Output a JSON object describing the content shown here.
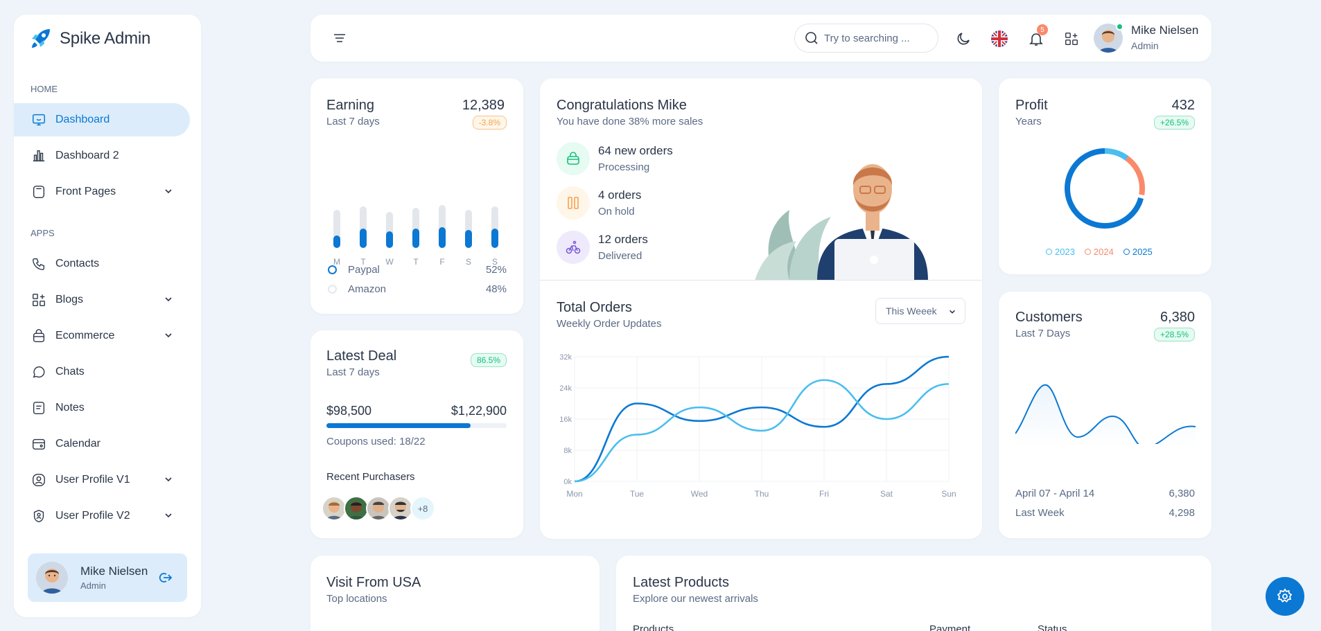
{
  "app": {
    "title": "Spike Admin"
  },
  "sidebar": {
    "sections": [
      "HOME",
      "APPS"
    ],
    "items": [
      {
        "label": "Dashboard",
        "icon": "monitor-icon"
      },
      {
        "label": "Dashboard 2",
        "icon": "chart-bar-icon"
      },
      {
        "label": "Front Pages",
        "icon": "layout-icon"
      },
      {
        "label": "Contacts",
        "icon": "phone-icon"
      },
      {
        "label": "Blogs",
        "icon": "apps-icon"
      },
      {
        "label": "Ecommerce",
        "icon": "basket-icon"
      },
      {
        "label": "Chats",
        "icon": "message-icon"
      },
      {
        "label": "Notes",
        "icon": "notes-icon"
      },
      {
        "label": "Calendar",
        "icon": "calendar-icon"
      },
      {
        "label": "User Profile V1",
        "icon": "user-circle-icon"
      },
      {
        "label": "User Profile V2",
        "icon": "user-shield-icon"
      }
    ],
    "profile": {
      "name": "Mike Nielsen",
      "role": "Admin"
    }
  },
  "header": {
    "search_placeholder": "Try to searching ...",
    "notification_count": "5",
    "user": {
      "name": "Mike Nielsen",
      "role": "Admin"
    }
  },
  "earning": {
    "title": "Earning",
    "subtitle": "Last 7 days",
    "value": "12,389",
    "change": "-3.8%",
    "days": [
      "M",
      "T",
      "W",
      "T",
      "F",
      "S",
      "S"
    ],
    "total_bars": [
      0.55,
      0.6,
      0.52,
      0.58,
      0.62,
      0.55,
      0.6
    ],
    "fill_bars": [
      0.18,
      0.28,
      0.24,
      0.28,
      0.3,
      0.26,
      0.28
    ],
    "legend": [
      {
        "label": "Paypal",
        "value": "52%"
      },
      {
        "label": "Amazon",
        "value": "48%"
      }
    ]
  },
  "congrats": {
    "title": "Congratulations Mike",
    "subtitle": "You have done 38% more sales",
    "stats": [
      {
        "value": "64 new orders",
        "label": "Processing",
        "icon": "basket-icon",
        "color": "#13c07c"
      },
      {
        "value": "4 orders",
        "label": "On hold",
        "icon": "pause-icon",
        "color": "#f8a24a"
      },
      {
        "value": "12 orders",
        "label": "Delivered",
        "icon": "bike-icon",
        "color": "#7c5cd6"
      }
    ]
  },
  "profit": {
    "title": "Profit",
    "subtitle": "Years",
    "value": "432",
    "change": "+26.5%",
    "legend": [
      "2023",
      "2024",
      "2025"
    ],
    "colors": [
      "#49beef",
      "#fa896b",
      "#0b78d3"
    ]
  },
  "total_orders": {
    "title": "Total Orders",
    "subtitle": "Weekly Order Updates",
    "dropdown": "This Weeek",
    "chart_data": {
      "type": "line",
      "categories": [
        "Mon",
        "Tue",
        "Wed",
        "Thu",
        "Fri",
        "Sat",
        "Sun"
      ],
      "yticks": [
        "0k",
        "8k",
        "16k",
        "24k",
        "32k"
      ],
      "ylim": [
        0,
        32
      ],
      "series": [
        {
          "values": [
            0,
            20,
            15.5,
            19,
            14,
            25,
            32
          ],
          "color": "#0b78d3"
        },
        {
          "values": [
            0,
            12,
            19,
            13,
            26,
            16,
            25
          ],
          "color": "#49beef"
        }
      ]
    }
  },
  "customers": {
    "title": "Customers",
    "subtitle": "Last 7 Days",
    "value": "6,380",
    "change": "+28.5%",
    "rows": [
      {
        "label": "April 07 - April 14",
        "value": "6,380"
      },
      {
        "label": "Last Week",
        "value": "4,298"
      }
    ]
  },
  "deal": {
    "title": "Latest Deal",
    "subtitle": "Last 7 days",
    "badge": "86.5%",
    "current": "$98,500",
    "target": "$1,22,900",
    "progress": 0.8,
    "coupons": "Coupons used: 18/22",
    "purchasers_title": "Recent Purchasers",
    "more": "+8"
  },
  "visits": {
    "title": "Visit From USA",
    "subtitle": "Top locations"
  },
  "products": {
    "title": "Latest Products",
    "subtitle": "Explore our newest arrivals",
    "columns": [
      "Products",
      "Payment",
      "Status"
    ]
  }
}
